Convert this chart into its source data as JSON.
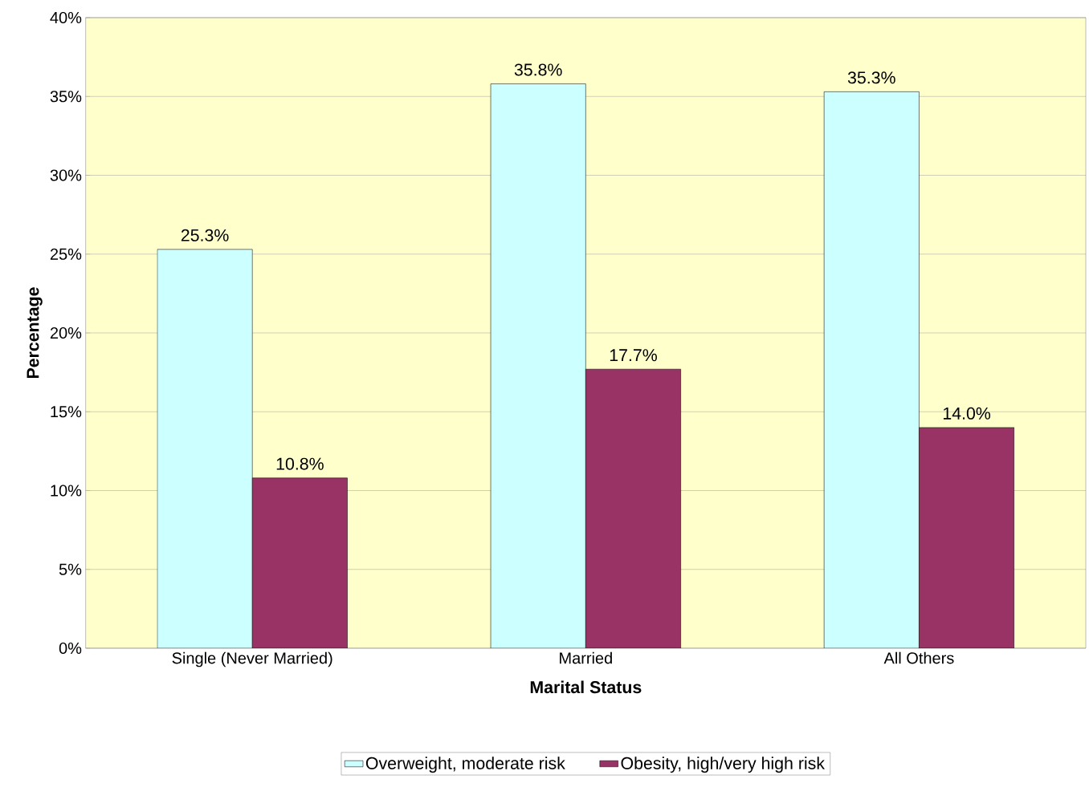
{
  "chart_data": {
    "type": "bar",
    "xlabel": "Marital Status",
    "ylabel": "Percentage",
    "categories": [
      "Single (Never Married)",
      "Married",
      "All Others"
    ],
    "series": [
      {
        "name": "Overweight, moderate risk",
        "color": "#ccffff",
        "values": [
          25.3,
          35.8,
          35.3
        ],
        "value_labels": [
          "25.3%",
          "35.8%",
          "35.3%"
        ]
      },
      {
        "name": "Obesity, high/very high risk",
        "color": "#993366",
        "values": [
          10.8,
          17.7,
          14.0
        ],
        "value_labels": [
          "10.8%",
          "17.7%",
          "14.0%"
        ]
      }
    ],
    "ylim": [
      0,
      40
    ],
    "yticks": [
      {
        "value": 0,
        "label": "0%"
      },
      {
        "value": 5,
        "label": "5%"
      },
      {
        "value": 10,
        "label": "10%"
      },
      {
        "value": 15,
        "label": "15%"
      },
      {
        "value": 20,
        "label": "20%"
      },
      {
        "value": 25,
        "label": "25%"
      },
      {
        "value": 30,
        "label": "30%"
      },
      {
        "value": 35,
        "label": "35%"
      },
      {
        "value": 40,
        "label": "40%"
      }
    ],
    "grid": "y",
    "legend": "bottom"
  }
}
